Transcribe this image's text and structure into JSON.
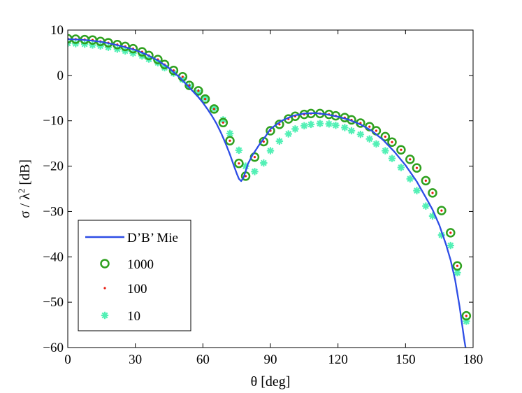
{
  "chart_data": {
    "type": "scatter",
    "title": "",
    "xlabel": "θ [deg]",
    "ylabel_parts": {
      "pre": "σ / λ",
      "sup": "2",
      "post": " [dB]"
    },
    "xlim": [
      0,
      180
    ],
    "ylim": [
      -60,
      10
    ],
    "xticks": [
      0,
      30,
      60,
      90,
      120,
      150,
      180
    ],
    "yticks": [
      10,
      0,
      -10,
      -20,
      -30,
      -40,
      -50,
      -60
    ],
    "xtick_labels": [
      "0",
      "30",
      "60",
      "90",
      "120",
      "150",
      "180"
    ],
    "ytick_labels": [
      "10",
      "0",
      "−10",
      "−20",
      "−30",
      "−40",
      "−50",
      "−60"
    ],
    "grid": false,
    "legend_position": "bottom-left",
    "colors": {
      "mie": "#2d4de6",
      "s1000": "#2ea01e",
      "s100": "#e8190e",
      "s10": "#52f0b5"
    },
    "series": [
      {
        "name": "D’B’ Mie",
        "kind": "line",
        "x": [
          0,
          5,
          10,
          15,
          20,
          25,
          30,
          35,
          40,
          45,
          50,
          55,
          58,
          60,
          62,
          64,
          66,
          68,
          70,
          72,
          74,
          75,
          76,
          77,
          78,
          79,
          80,
          82,
          85,
          88,
          90,
          95,
          100,
          105,
          110,
          115,
          120,
          125,
          130,
          135,
          140,
          145,
          150,
          155,
          160,
          162,
          165,
          168,
          170,
          172,
          174,
          175,
          176,
          177,
          177.5
        ],
        "y": [
          8.0,
          7.9,
          7.7,
          7.4,
          6.9,
          6.3,
          5.6,
          4.6,
          3.3,
          1.6,
          -0.6,
          -3.2,
          -4.8,
          -6.0,
          -7.4,
          -8.9,
          -10.6,
          -12.6,
          -14.9,
          -17.4,
          -20.2,
          -21.6,
          -22.8,
          -23.3,
          -22.6,
          -21.1,
          -19.5,
          -17.6,
          -15.3,
          -13.3,
          -11.8,
          -10.0,
          -8.9,
          -8.4,
          -8.3,
          -8.6,
          -9.1,
          -9.8,
          -10.8,
          -12.2,
          -14.2,
          -16.8,
          -19.8,
          -23.4,
          -27.8,
          -29.6,
          -33.0,
          -37.3,
          -40.7,
          -45.0,
          -51.0,
          -54.5,
          -58.0,
          -61.0,
          -63.0
        ]
      },
      {
        "name": "1000",
        "kind": "marker-circle",
        "x": [
          0,
          3.5,
          7.5,
          11,
          14.5,
          18,
          22,
          25.5,
          29,
          33,
          36,
          40,
          43,
          47,
          51,
          54,
          58,
          61,
          65,
          69,
          72,
          76,
          79,
          83,
          87,
          90,
          94,
          98,
          101,
          105,
          108,
          112,
          116,
          119,
          123,
          126,
          130,
          134,
          137,
          141,
          144,
          148,
          152,
          155,
          159,
          162,
          166,
          170,
          173,
          177
        ],
        "y": [
          8.1,
          8.0,
          7.9,
          7.8,
          7.5,
          7.2,
          6.8,
          6.4,
          5.9,
          5.2,
          4.4,
          3.5,
          2.4,
          1.1,
          -0.3,
          -2.2,
          -3.4,
          -5.2,
          -7.4,
          -10.4,
          -14.4,
          -19.4,
          -22.2,
          -18.0,
          -14.6,
          -12.2,
          -10.8,
          -9.6,
          -9.0,
          -8.6,
          -8.4,
          -8.4,
          -8.6,
          -8.9,
          -9.3,
          -9.8,
          -10.5,
          -11.3,
          -12.2,
          -13.5,
          -14.7,
          -16.4,
          -18.5,
          -20.4,
          -23.2,
          -25.9,
          -29.8,
          -34.7,
          -42.0,
          -53.0
        ]
      },
      {
        "name": "100",
        "kind": "marker-dot",
        "x": [
          0,
          3.5,
          7.5,
          11,
          14.5,
          18,
          22,
          25.5,
          29,
          33,
          36,
          40,
          43,
          47,
          51,
          54,
          58,
          61,
          65,
          69,
          72,
          76,
          79,
          83,
          87,
          90,
          94,
          98,
          101,
          105,
          108,
          112,
          116,
          119,
          123,
          126,
          130,
          134,
          137,
          141,
          144,
          148,
          152,
          155,
          159,
          162,
          166,
          170,
          173,
          177
        ],
        "y": [
          8.1,
          8.0,
          7.9,
          7.8,
          7.5,
          7.2,
          6.8,
          6.4,
          5.9,
          5.2,
          4.4,
          3.5,
          2.4,
          1.1,
          -0.3,
          -2.2,
          -3.4,
          -5.2,
          -7.4,
          -10.4,
          -14.4,
          -19.4,
          -22.2,
          -18.0,
          -14.6,
          -12.2,
          -10.8,
          -9.6,
          -9.0,
          -8.6,
          -8.4,
          -8.4,
          -8.6,
          -8.9,
          -9.3,
          -9.8,
          -10.5,
          -11.3,
          -12.2,
          -13.5,
          -14.7,
          -16.4,
          -18.5,
          -20.4,
          -23.2,
          -25.9,
          -29.8,
          -34.7,
          -42.0,
          -53.0
        ]
      },
      {
        "name": "10",
        "kind": "marker-star",
        "x": [
          0,
          3.5,
          7.5,
          11,
          14.5,
          18,
          22,
          25.5,
          29,
          33,
          36,
          40,
          43,
          47,
          51,
          54,
          58,
          61,
          65,
          69,
          72,
          76,
          79,
          83,
          87,
          90,
          94,
          98,
          101,
          105,
          108,
          112,
          116,
          119,
          123,
          126,
          130,
          134,
          137,
          141,
          144,
          148,
          152,
          155,
          159,
          162,
          166,
          170,
          173,
          177
        ],
        "y": [
          7.1,
          7.0,
          6.9,
          6.7,
          6.5,
          6.2,
          5.8,
          5.4,
          4.9,
          4.3,
          3.6,
          2.8,
          1.7,
          0.5,
          -0.9,
          -2.4,
          -3.8,
          -5.0,
          -7.3,
          -9.8,
          -12.8,
          -16.5,
          -20.0,
          -21.2,
          -19.3,
          -16.6,
          -14.5,
          -12.9,
          -11.8,
          -11.1,
          -10.8,
          -10.6,
          -10.7,
          -11.0,
          -11.5,
          -12.2,
          -13.0,
          -14.0,
          -15.1,
          -16.6,
          -18.3,
          -20.3,
          -22.8,
          -25.4,
          -28.8,
          -31.0,
          -35.2,
          -37.5,
          -43.5,
          -54.2
        ]
      }
    ]
  }
}
